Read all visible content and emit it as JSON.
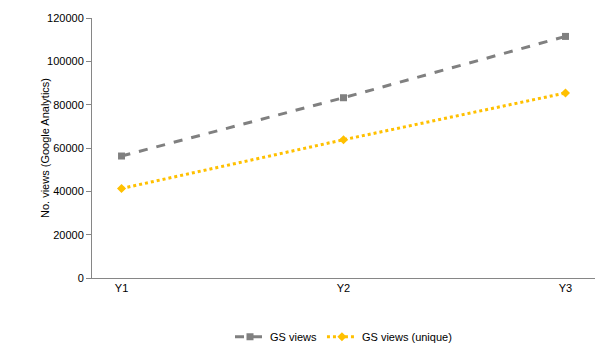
{
  "chart_data": {
    "type": "line",
    "y_label": "No. views (Google Analytics)",
    "categories": [
      "Y1",
      "Y2",
      "Y3"
    ],
    "series": [
      {
        "name": "GS views",
        "color": "#808080",
        "marker": "square",
        "line_style": "dash",
        "values": [
          56300,
          83200,
          111500
        ]
      },
      {
        "name": "GS views (unique)",
        "color": "#ffc000",
        "marker": "diamond",
        "line_style": "dot",
        "values": [
          41300,
          63800,
          85400
        ]
      }
    ],
    "ylim": [
      0,
      120000
    ],
    "yticks": [
      0,
      20000,
      40000,
      60000,
      80000,
      100000,
      120000
    ],
    "grid": false,
    "legend": "bottom"
  }
}
